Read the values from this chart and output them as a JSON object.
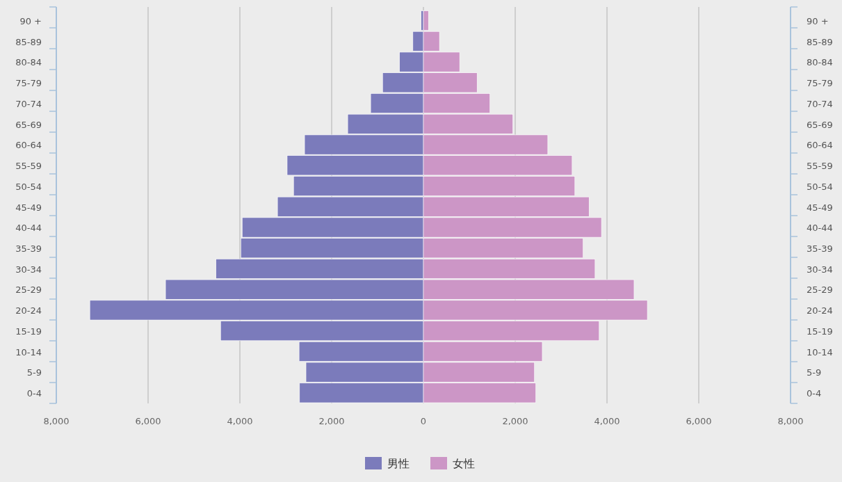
{
  "chart_data": {
    "type": "bar",
    "orientation": "horizontal",
    "stacked": true,
    "categories": [
      "90 +",
      "85-89",
      "80-84",
      "75-79",
      "70-74",
      "65-69",
      "60-64",
      "55-59",
      "50-54",
      "45-49",
      "40-44",
      "35-39",
      "30-34",
      "25-29",
      "20-24",
      "15-19",
      "10-14",
      "5-9",
      "0-4"
    ],
    "series": [
      {
        "name": "男性",
        "color": "#7b7bbb",
        "values": [
          -50,
          -230,
          -520,
          -890,
          -1150,
          -1650,
          -2590,
          -2970,
          -2830,
          -3180,
          -3950,
          -3980,
          -4520,
          -5620,
          -7270,
          -4420,
          -2710,
          -2560,
          -2700
        ]
      },
      {
        "name": "女性",
        "color": "#cc96c6",
        "values": [
          110,
          350,
          790,
          1170,
          1450,
          1950,
          2710,
          3240,
          3300,
          3610,
          3880,
          3480,
          3740,
          4590,
          4880,
          3830,
          2590,
          2420,
          2450
        ]
      }
    ],
    "xlim": [
      -8000,
      8000
    ],
    "xticks": [
      {
        "value": -8000,
        "label": "8,000"
      },
      {
        "value": -6000,
        "label": "6,000"
      },
      {
        "value": -4000,
        "label": "4,000"
      },
      {
        "value": -2000,
        "label": "2,000"
      },
      0,
      {
        "value": 2000,
        "label": "2,000"
      },
      {
        "value": 4000,
        "label": "4,000"
      },
      {
        "value": 6000,
        "label": "6,000"
      },
      {
        "value": 8000,
        "label": "8,000"
      }
    ],
    "grid": "x",
    "legend": "bottom"
  }
}
